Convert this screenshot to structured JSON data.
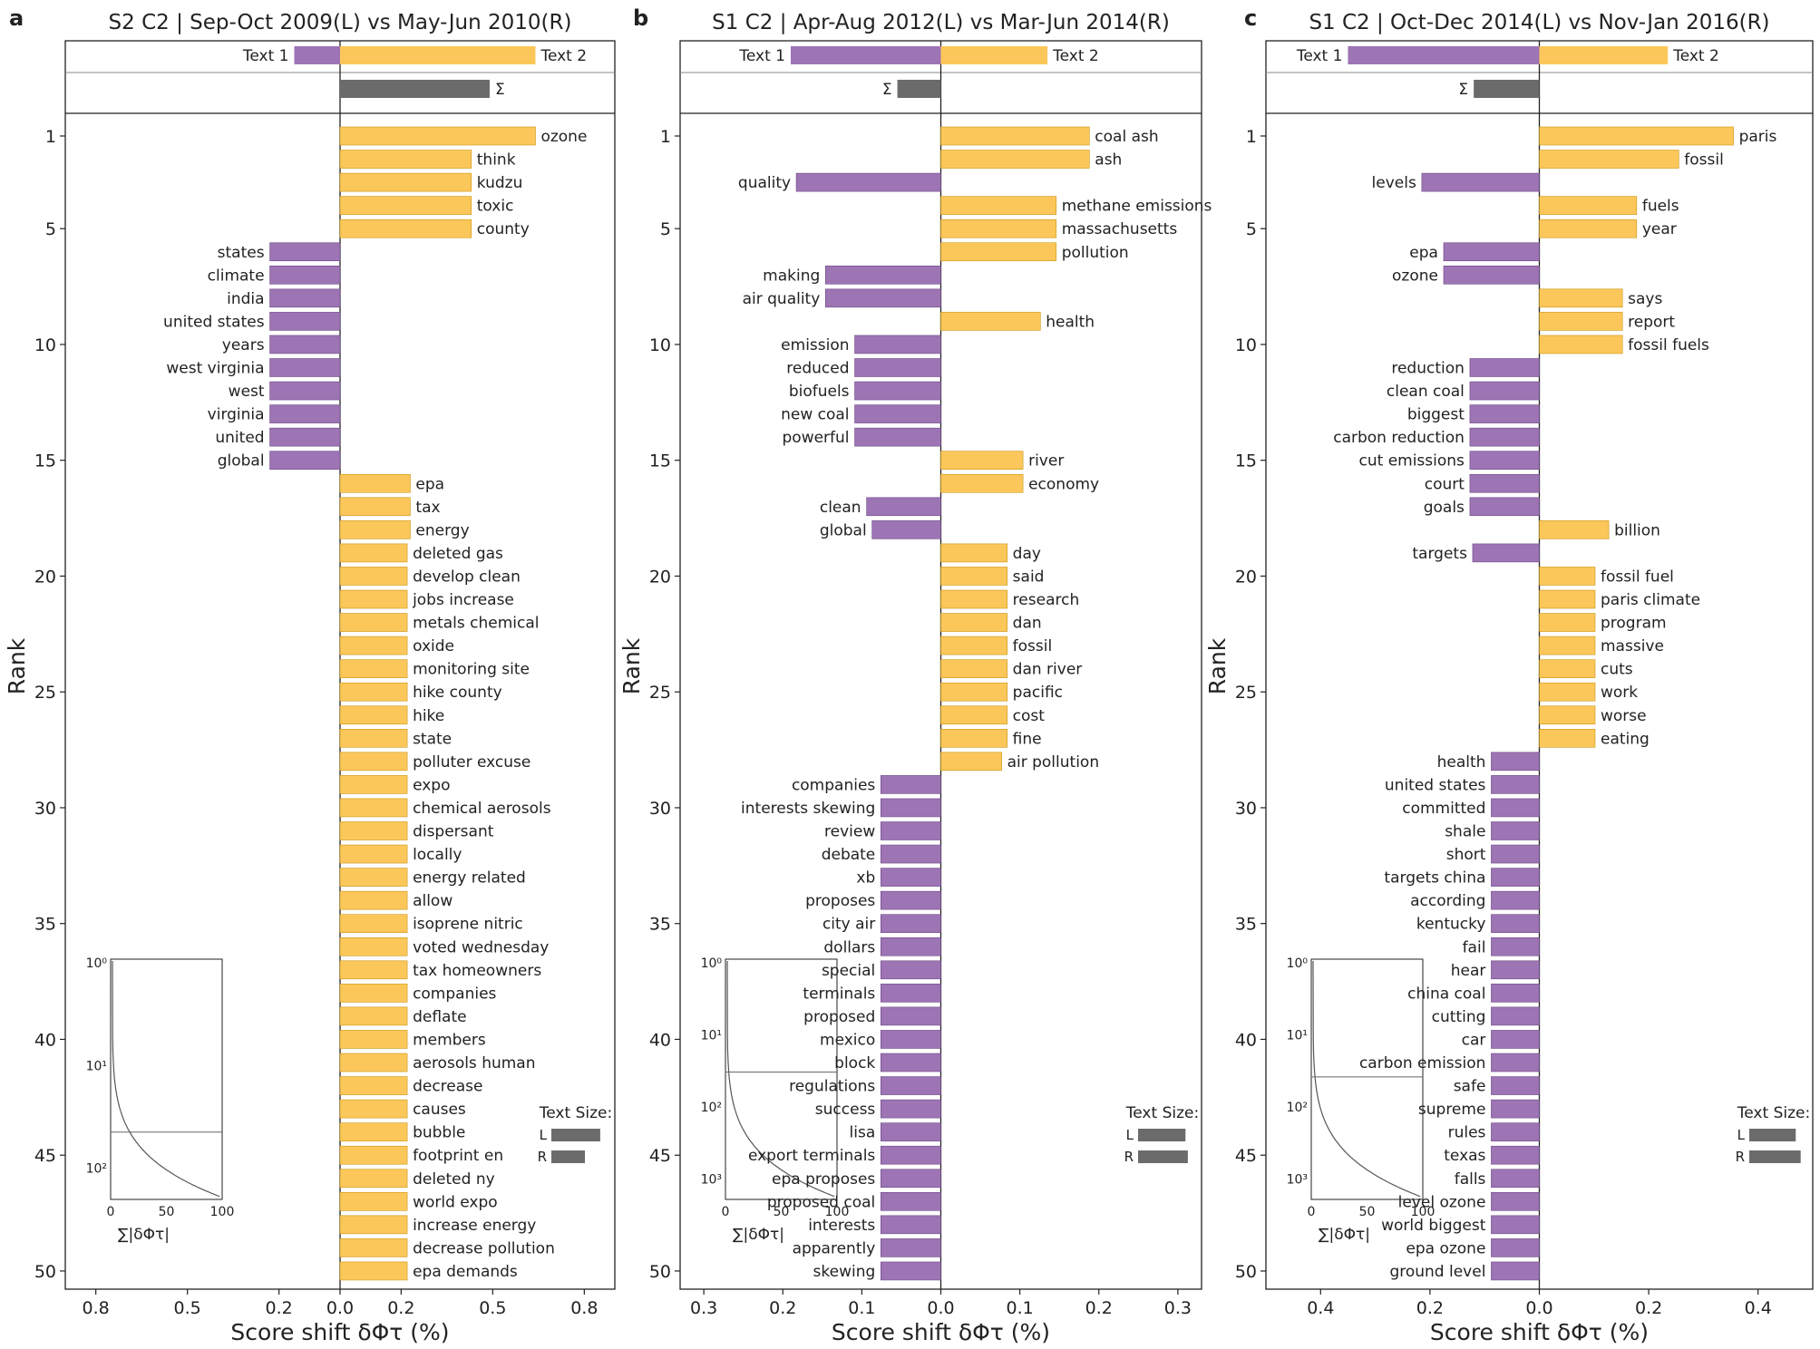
{
  "colors": {
    "left": "#9d74b4",
    "right": "#fcc75a",
    "sum": "#6b6b6b",
    "right_edge": "#c9950f",
    "left_edge": "#6d4a86"
  },
  "shared_labels": {
    "rank_axis": "Rank",
    "x_axis": "Score shift δΦτ (%)",
    "text1": "Text 1",
    "text2": "Text 2",
    "sigma": "Σ",
    "text_size": "Text Size:",
    "size_l": "L",
    "size_r": "R",
    "inset_xlabel": "∑|δΦτ|"
  },
  "chart_data": [
    {
      "panel": "a",
      "type": "bar",
      "title": "S2 C2 | Sep-Oct 2009(L) vs May-Jun 2010(R)",
      "xlabel": "Score shift δΦτ (%)",
      "ylabel": "Rank",
      "xlim": [
        -0.9,
        0.9
      ],
      "xticks": [
        -0.8,
        -0.5,
        -0.2,
        0,
        0.2,
        0.5,
        0.8
      ],
      "xtick_labels": [
        "0.8",
        "0.5",
        "0.2",
        "0.0",
        "0.2",
        "0.5",
        "0.8"
      ],
      "yticks": [
        1,
        5,
        10,
        15,
        20,
        25,
        30,
        35,
        40,
        45,
        50
      ],
      "summary": {
        "text1": -0.15,
        "text2": 0.64,
        "sum": 0.49
      },
      "text_size": {
        "L": 0.16,
        "R": 0.11
      },
      "inset": {
        "xticks": [
          "0",
          "50",
          "100"
        ],
        "yticks": [
          "10⁰",
          "10¹",
          "10²"
        ],
        "hline_level": 0.72
      },
      "words": [
        "ozone",
        "think",
        "kudzu",
        "toxic",
        "county",
        "states",
        "climate",
        "india",
        "united states",
        "years",
        "west virginia",
        "west",
        "virginia",
        "united",
        "global",
        "epa",
        "tax",
        "energy",
        "deleted gas",
        "develop clean",
        "jobs increase",
        "metals chemical",
        "oxide",
        "monitoring site",
        "hike county",
        "hike",
        "state",
        "polluter excuse",
        "expo",
        "chemical aerosols",
        "dispersant",
        "locally",
        "energy related",
        "allow",
        "isoprene nitric",
        "voted wednesday",
        "tax homeowners",
        "companies",
        "deflate",
        "members",
        "aerosols human",
        "decrease",
        "causes",
        "bubble",
        "footprint en",
        "deleted ny",
        "world expo",
        "increase energy",
        "decrease pollution",
        "epa demands"
      ],
      "values": [
        0.64,
        0.43,
        0.43,
        0.43,
        0.43,
        -0.23,
        -0.23,
        -0.23,
        -0.23,
        -0.23,
        -0.23,
        -0.23,
        -0.23,
        -0.23,
        -0.23,
        0.23,
        0.23,
        0.23,
        0.22,
        0.22,
        0.22,
        0.22,
        0.22,
        0.22,
        0.22,
        0.22,
        0.22,
        0.22,
        0.22,
        0.22,
        0.22,
        0.22,
        0.22,
        0.22,
        0.22,
        0.22,
        0.22,
        0.22,
        0.22,
        0.22,
        0.22,
        0.22,
        0.22,
        0.22,
        0.22,
        0.22,
        0.22,
        0.22,
        0.22,
        0.22
      ]
    },
    {
      "panel": "b",
      "type": "bar",
      "title": "S1 C2 | Apr-Aug 2012(L) vs Mar-Jun 2014(R)",
      "xlabel": "Score shift δΦτ (%)",
      "ylabel": "Rank",
      "xlim": [
        -0.33,
        0.33
      ],
      "xticks": [
        -0.3,
        -0.2,
        -0.1,
        0,
        0.1,
        0.2,
        0.3
      ],
      "xtick_labels": [
        "0.3",
        "0.2",
        "0.1",
        "0.0",
        "0.1",
        "0.2",
        "0.3"
      ],
      "yticks": [
        1,
        5,
        10,
        15,
        20,
        25,
        30,
        35,
        40,
        45,
        50
      ],
      "summary": {
        "text1": -0.19,
        "text2": 0.135,
        "sum": -0.055
      },
      "text_size": {
        "L": 0.06,
        "R": 0.063
      },
      "inset": {
        "xticks": [
          "0",
          "50",
          "100"
        ],
        "yticks": [
          "10⁰",
          "10¹",
          "10²",
          "10³"
        ],
        "hline_level": 0.47
      },
      "words": [
        "coal ash",
        "ash",
        "quality",
        "methane emissions",
        "massachusetts",
        "pollution",
        "making",
        "air quality",
        "health",
        "emission",
        "reduced",
        "biofuels",
        "new coal",
        "powerful",
        "river",
        "economy",
        "clean",
        "global",
        "day",
        "said",
        "research",
        "dan",
        "fossil",
        "dan river",
        "pacific",
        "cost",
        "fine",
        "air pollution",
        "companies",
        "interests skewing",
        "review",
        "debate",
        "xb",
        "proposes",
        "city air",
        "dollars",
        "special",
        "terminals",
        "proposed",
        "mexico",
        "block",
        "regulations",
        "success",
        "lisa",
        "export terminals",
        "epa proposes",
        "proposed coal",
        "interests",
        "apparently",
        "skewing"
      ],
      "values": [
        0.188,
        0.188,
        -0.183,
        0.146,
        0.146,
        0.146,
        -0.146,
        -0.146,
        0.126,
        -0.109,
        -0.109,
        -0.109,
        -0.109,
        -0.109,
        0.104,
        0.104,
        -0.094,
        -0.087,
        0.084,
        0.084,
        0.084,
        0.084,
        0.084,
        0.084,
        0.084,
        0.084,
        0.084,
        0.077,
        -0.076,
        -0.076,
        -0.076,
        -0.076,
        -0.076,
        -0.076,
        -0.076,
        -0.076,
        -0.076,
        -0.076,
        -0.076,
        -0.076,
        -0.076,
        -0.076,
        -0.076,
        -0.076,
        -0.076,
        -0.076,
        -0.076,
        -0.076,
        -0.076,
        -0.076
      ]
    },
    {
      "panel": "c",
      "type": "bar",
      "title": "S1 C2 | Oct-Dec 2014(L) vs Nov-Jan 2016(R)",
      "xlabel": "Score shift δΦτ (%)",
      "ylabel": "Rank",
      "xlim": [
        -0.5,
        0.5
      ],
      "xticks": [
        -0.4,
        -0.2,
        0,
        0.2,
        0.4
      ],
      "xtick_labels": [
        "0.4",
        "0.2",
        "0.0",
        "0.2",
        "0.4"
      ],
      "yticks": [
        1,
        5,
        10,
        15,
        20,
        25,
        30,
        35,
        40,
        45,
        50
      ],
      "summary": {
        "text1": -0.35,
        "text2": 0.235,
        "sum": -0.12
      },
      "text_size": {
        "L": 0.085,
        "R": 0.094
      },
      "inset": {
        "xticks": [
          "0",
          "50",
          "100"
        ],
        "yticks": [
          "10⁰",
          "10¹",
          "10²",
          "10³"
        ],
        "hline_level": 0.49
      },
      "words": [
        "paris",
        "fossil",
        "levels",
        "fuels",
        "year",
        "epa",
        "ozone",
        "says",
        "report",
        "fossil fuels",
        "reduction",
        "clean coal",
        "biggest",
        "carbon reduction",
        "cut emissions",
        "court",
        "goals",
        "billion",
        "targets",
        "fossil fuel",
        "paris climate",
        "program",
        "massive",
        "cuts",
        "work",
        "worse",
        "eating",
        "health",
        "united states",
        "committed",
        "shale",
        "short",
        "targets china",
        "according",
        "kentucky",
        "fail",
        "hear",
        "china coal",
        "cutting",
        "car",
        "carbon emission",
        "safe",
        "supreme",
        "rules",
        "texas",
        "falls",
        "level ozone",
        "world biggest",
        "epa ozone",
        "ground level"
      ],
      "values": [
        0.355,
        0.255,
        -0.215,
        0.178,
        0.178,
        -0.175,
        -0.175,
        0.152,
        0.152,
        0.152,
        -0.127,
        -0.127,
        -0.127,
        -0.127,
        -0.127,
        -0.127,
        -0.127,
        0.127,
        -0.122,
        0.102,
        0.102,
        0.102,
        0.102,
        0.102,
        0.102,
        0.102,
        0.102,
        -0.088,
        -0.088,
        -0.088,
        -0.088,
        -0.088,
        -0.088,
        -0.088,
        -0.088,
        -0.088,
        -0.088,
        -0.088,
        -0.088,
        -0.088,
        -0.088,
        -0.088,
        -0.088,
        -0.088,
        -0.088,
        -0.088,
        -0.088,
        -0.088,
        -0.088,
        -0.088
      ]
    }
  ]
}
